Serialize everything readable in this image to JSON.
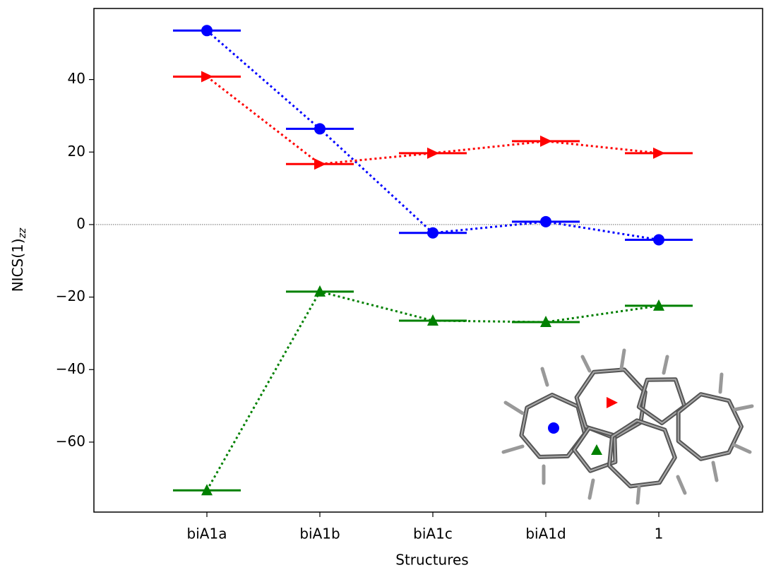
{
  "chart_data": {
    "type": "line",
    "x_label": "Structures",
    "y_label": "NICS(1)",
    "y_label_subscript": "zz",
    "categories": [
      "biA1a",
      "biA1b",
      "biA1c",
      "biA1d",
      "1"
    ],
    "series": [
      {
        "color": "#0000ff",
        "marker": "circle",
        "values": [
          53.5,
          26.4,
          -2.3,
          0.8,
          -4.2
        ]
      },
      {
        "color": "#ff0000",
        "marker": "triangle-right",
        "values": [
          40.8,
          16.7,
          19.7,
          23.0,
          19.7
        ]
      },
      {
        "color": "#008000",
        "marker": "triangle-up",
        "values": [
          -73.3,
          -18.5,
          -26.5,
          -26.9,
          -22.4
        ]
      }
    ],
    "ylim": [
      -79.3,
      59.6
    ],
    "yticks": [
      {
        "value": -60,
        "label": "−60"
      },
      {
        "value": -40,
        "label": "−40"
      },
      {
        "value": -20,
        "label": "−20"
      },
      0,
      20,
      40
    ],
    "reference_line": 0,
    "line_style": "dotted"
  }
}
